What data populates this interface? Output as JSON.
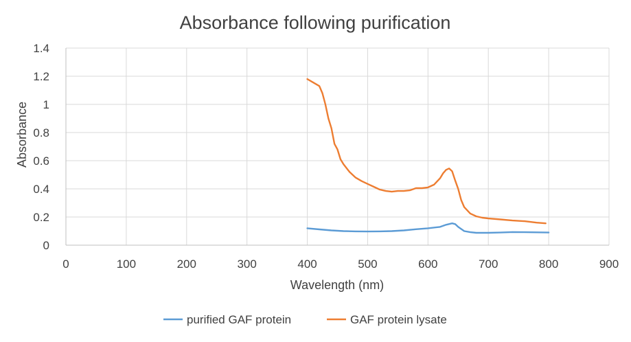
{
  "chart_data": {
    "type": "line",
    "title": "Absorbance following purification",
    "xlabel": "Wavelength (nm)",
    "ylabel": "Absorbance",
    "xlim": [
      0,
      900
    ],
    "ylim": [
      0,
      1.4
    ],
    "x_ticks": [
      0,
      100,
      200,
      300,
      400,
      500,
      600,
      700,
      800,
      900
    ],
    "y_ticks": [
      0,
      0.2,
      0.4,
      0.6,
      0.8,
      1,
      1.2,
      1.4
    ],
    "y_tick_labels": [
      "0",
      "0.2",
      "0.4",
      "0.6",
      "0.8",
      "1",
      "1.2",
      "1.4"
    ],
    "grid": true,
    "legend_position": "bottom",
    "series": [
      {
        "name": "purified GAF protein",
        "color": "#5B9BD5",
        "x": [
          400,
          420,
          440,
          460,
          480,
          500,
          520,
          540,
          560,
          580,
          600,
          620,
          630,
          640,
          645,
          650,
          660,
          670,
          680,
          700,
          720,
          740,
          760,
          780,
          800
        ],
        "y": [
          0.12,
          0.112,
          0.105,
          0.1,
          0.098,
          0.097,
          0.098,
          0.1,
          0.105,
          0.113,
          0.12,
          0.13,
          0.145,
          0.155,
          0.15,
          0.13,
          0.1,
          0.092,
          0.088,
          0.088,
          0.09,
          0.093,
          0.092,
          0.091,
          0.09
        ]
      },
      {
        "name": "GAF protein lysate",
        "color": "#ED7D31",
        "x": [
          400,
          410,
          420,
          425,
          430,
          435,
          440,
          445,
          450,
          455,
          460,
          470,
          480,
          490,
          500,
          510,
          520,
          530,
          540,
          550,
          560,
          570,
          580,
          590,
          600,
          610,
          620,
          625,
          630,
          635,
          640,
          645,
          650,
          655,
          660,
          670,
          680,
          690,
          700,
          720,
          740,
          760,
          780,
          795
        ],
        "y": [
          1.18,
          1.155,
          1.13,
          1.08,
          1.0,
          0.9,
          0.83,
          0.72,
          0.68,
          0.61,
          0.575,
          0.52,
          0.48,
          0.455,
          0.435,
          0.415,
          0.395,
          0.385,
          0.38,
          0.385,
          0.385,
          0.39,
          0.405,
          0.405,
          0.41,
          0.43,
          0.475,
          0.51,
          0.535,
          0.545,
          0.525,
          0.46,
          0.4,
          0.32,
          0.27,
          0.225,
          0.205,
          0.195,
          0.19,
          0.183,
          0.175,
          0.17,
          0.16,
          0.155
        ]
      }
    ]
  }
}
